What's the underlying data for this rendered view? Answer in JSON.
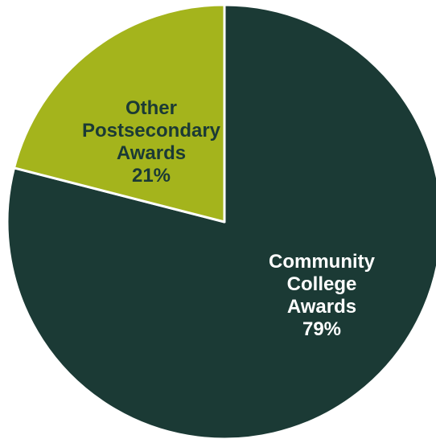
{
  "chart_data": {
    "type": "pie",
    "slices": [
      {
        "label": "Community\nCollege\nAwards",
        "value": 79,
        "value_label": "79%",
        "color": "#1b3a35"
      },
      {
        "label": "Other\nPostsecondary\nAwards",
        "value": 21,
        "value_label": "21%",
        "color": "#a4b41c"
      }
    ],
    "start": "12 o'clock",
    "direction": "clockwise",
    "separator_color": "#ffffff"
  }
}
